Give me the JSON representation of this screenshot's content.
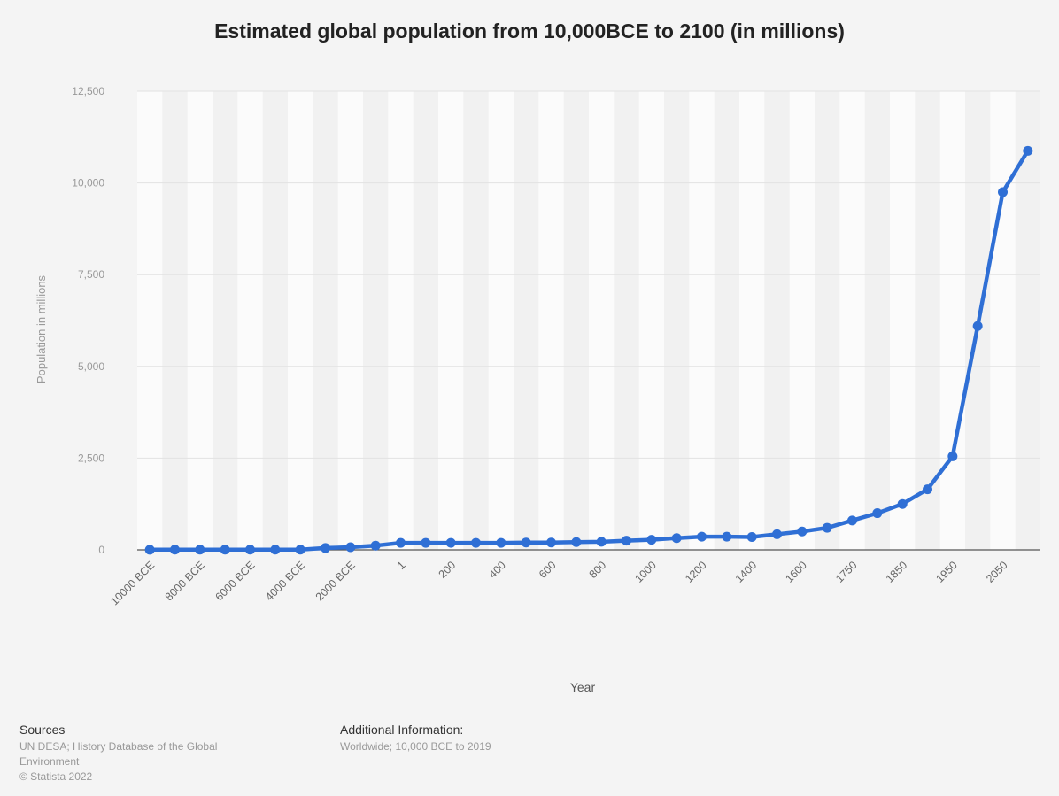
{
  "chart_data": {
    "type": "line",
    "title": "Estimated global population from 10,000BCE to 2100 (in millions)",
    "xlabel": "Year",
    "ylabel": "Population in millions",
    "ylim": [
      0,
      12500
    ],
    "yticks": [
      0,
      2500,
      5000,
      7500,
      10000,
      12500
    ],
    "ytick_labels": [
      "0",
      "2,500",
      "5,000",
      "7,500",
      "10,000",
      "12,500"
    ],
    "grid": true,
    "categories": [
      "10000 BCE",
      "9000 BCE",
      "8000 BCE",
      "7000 BCE",
      "6000 BCE",
      "5000 BCE",
      "4000 BCE",
      "3000 BCE",
      "2000 BCE",
      "1000 BCE",
      "1",
      "100",
      "200",
      "300",
      "400",
      "500",
      "600",
      "700",
      "800",
      "900",
      "1000",
      "1100",
      "1200",
      "1300",
      "1400",
      "1500",
      "1600",
      "1700",
      "1750",
      "1800",
      "1850",
      "1900",
      "1950",
      "2000",
      "2050",
      "2100"
    ],
    "xtick_labels": [
      "10000 BCE",
      "8000 BCE",
      "6000 BCE",
      "4000 BCE",
      "2000 BCE",
      "1",
      "200",
      "400",
      "600",
      "800",
      "1000",
      "1200",
      "1400",
      "1600",
      "1750",
      "1850",
      "1950",
      "2050"
    ],
    "series": [
      {
        "color": "#2f6fd5",
        "values": [
          4,
          5,
          5,
          5,
          5,
          7,
          7,
          50,
          72,
          115,
          190,
          190,
          190,
          190,
          190,
          200,
          200,
          210,
          220,
          250,
          275,
          320,
          360,
          360,
          350,
          425,
          500,
          600,
          800,
          1000,
          1250,
          1650,
          2550,
          6100,
          9750,
          10875
        ]
      }
    ]
  },
  "footer": {
    "sources_heading": "Sources",
    "sources_text_1": "UN DESA; History Database of the Global",
    "sources_text_2": "Environment",
    "copyright": "© Statista 2022",
    "info_heading": "Additional Information:",
    "info_text": "Worldwide; 10,000 BCE to 2019"
  }
}
